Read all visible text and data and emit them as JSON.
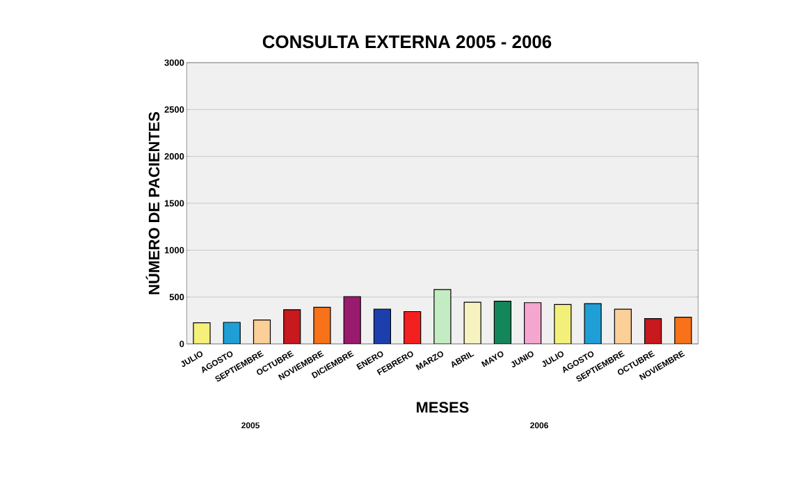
{
  "chart_data": {
    "type": "bar",
    "title": "CONSULTA EXTERNA 2005 - 2006",
    "xlabel": "MESES",
    "ylabel": "NÚMERO DE PACIENTES",
    "categories": [
      "JULIO",
      "AGOSTO",
      "SEPTIEMBRE",
      "OCTUBRE",
      "NOVIEMBRE",
      "DICIEMBRE",
      "ENERO",
      "FEBRERO",
      "MARZO",
      "ABRIL",
      "MAYO",
      "JUNIO",
      "JULIO",
      "AGOSTO",
      "SEPTIEMBRE",
      "OCTUBRE",
      "NOVIEMBRE"
    ],
    "values": [
      225,
      230,
      255,
      365,
      390,
      505,
      370,
      345,
      580,
      445,
      455,
      440,
      420,
      430,
      370,
      270,
      285
    ],
    "colors": [
      "#f5f07a",
      "#1f9fd6",
      "#fbcf98",
      "#c8191e",
      "#f77218",
      "#9a1b6e",
      "#1d3fae",
      "#f3201f",
      "#c3ecc2",
      "#f6f3c0",
      "#14875a",
      "#f4a6cf",
      "#f3f07a",
      "#1f9fd6",
      "#fbcf98",
      "#c8191e",
      "#f77218"
    ],
    "ylim": [
      0,
      3000
    ],
    "yticks": [
      0,
      500,
      1000,
      1500,
      2000,
      2500,
      3000
    ],
    "grid": "y",
    "annotations": [
      "2005",
      "2006"
    ]
  }
}
